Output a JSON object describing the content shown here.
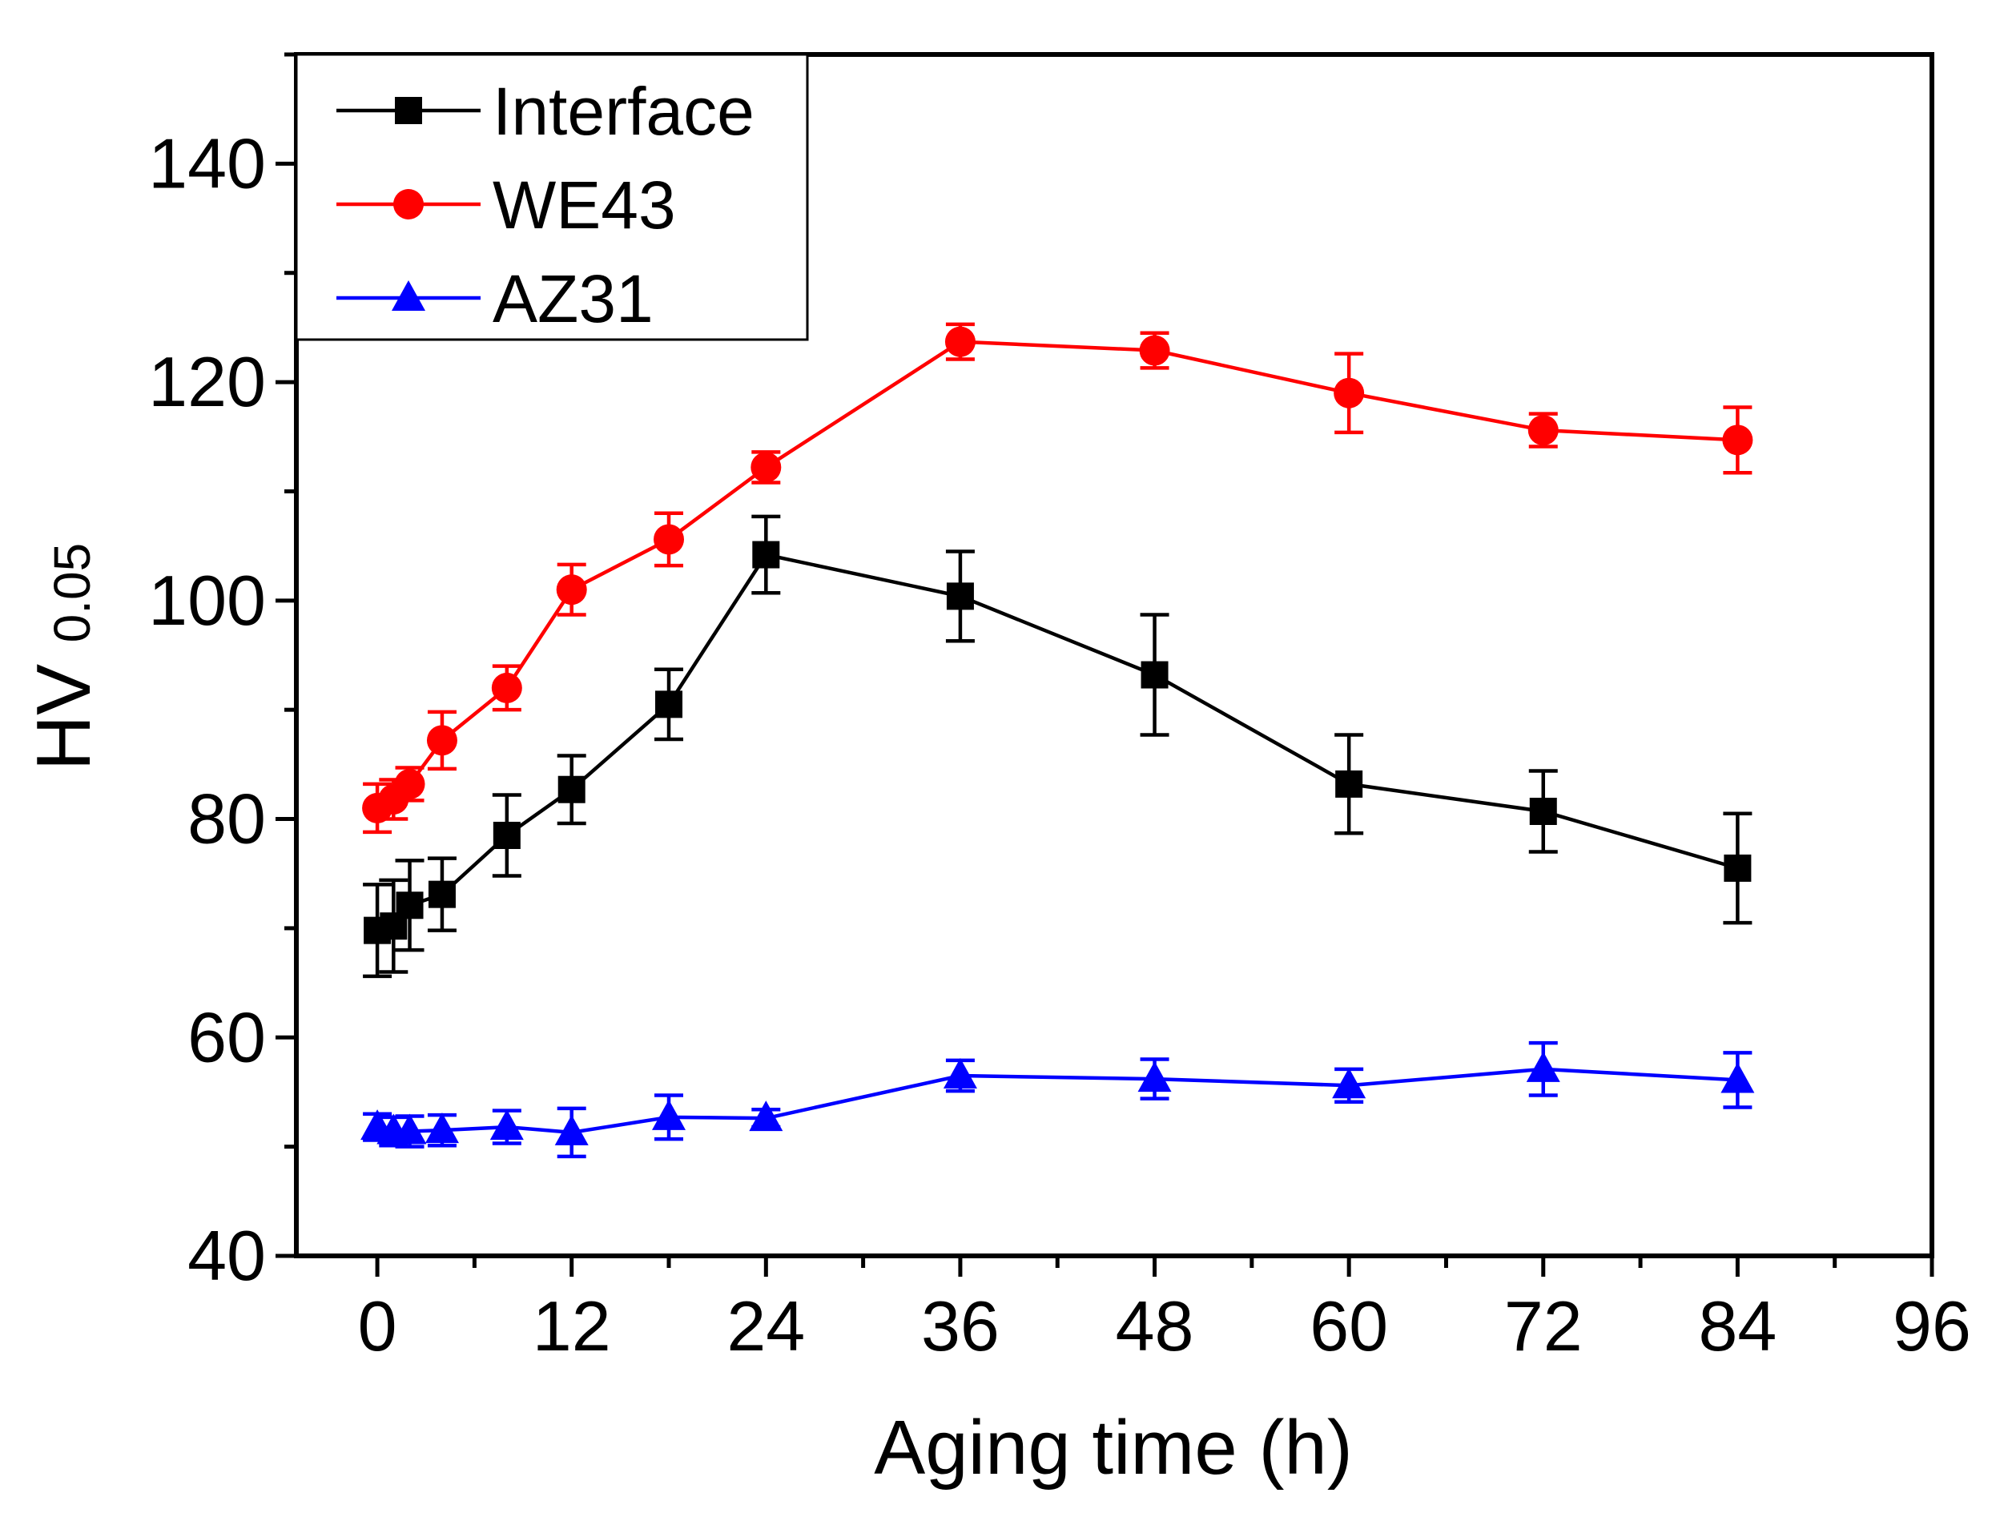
{
  "chart_data": {
    "type": "line",
    "title": "",
    "xlabel": "Aging time (h)",
    "ylabel_main": "HV",
    "ylabel_sub": "0.05",
    "xlim": [
      -5,
      96
    ],
    "ylim": [
      40,
      150
    ],
    "xticks": [
      0,
      12,
      24,
      36,
      48,
      60,
      72,
      84,
      96
    ],
    "yticks": [
      40,
      60,
      80,
      100,
      120,
      140
    ],
    "xtick_labels": [
      "0",
      "12",
      "24",
      "36",
      "48",
      "60",
      "72",
      "84",
      "96"
    ],
    "ytick_labels": [
      "40",
      "60",
      "80",
      "100",
      "120",
      "140"
    ],
    "x_minor_step": 6,
    "y_minor_step": 10,
    "legend_position": "top-left",
    "series": [
      {
        "name": "Interface",
        "color": "#000000",
        "marker": "square",
        "x": [
          0,
          1,
          2,
          4,
          8,
          12,
          18,
          24,
          36,
          48,
          60,
          72,
          84
        ],
        "y": [
          69.8,
          70.2,
          72.1,
          73.1,
          78.5,
          82.7,
          90.5,
          104.2,
          100.4,
          93.2,
          83.2,
          80.7,
          75.5
        ],
        "err": [
          4.2,
          4.2,
          4.1,
          3.3,
          3.7,
          3.1,
          3.2,
          3.5,
          4.1,
          5.5,
          4.5,
          3.7,
          5.0
        ]
      },
      {
        "name": "WE43",
        "color": "#ff0000",
        "marker": "circle",
        "x": [
          0,
          1,
          2,
          4,
          8,
          12,
          18,
          24,
          36,
          48,
          60,
          72,
          84
        ],
        "y": [
          81.0,
          81.8,
          83.2,
          87.2,
          92.0,
          101.0,
          105.6,
          112.2,
          123.7,
          122.9,
          119.0,
          115.6,
          114.7
        ],
        "err": [
          2.2,
          1.8,
          1.5,
          2.6,
          2.0,
          2.3,
          2.4,
          1.4,
          1.6,
          1.6,
          3.6,
          1.5,
          3.0
        ]
      },
      {
        "name": "AZ31",
        "color": "#0000ff",
        "marker": "triangle",
        "x": [
          0,
          1,
          2,
          4,
          8,
          12,
          18,
          24,
          36,
          48,
          60,
          72,
          84
        ],
        "y": [
          51.8,
          51.4,
          51.4,
          51.5,
          51.8,
          51.3,
          52.7,
          52.6,
          56.5,
          56.2,
          55.6,
          57.1,
          56.1
        ],
        "err": [
          1.2,
          1.3,
          1.4,
          1.4,
          1.5,
          2.2,
          2.0,
          0.8,
          1.4,
          1.8,
          1.5,
          2.4,
          2.5
        ]
      }
    ]
  }
}
